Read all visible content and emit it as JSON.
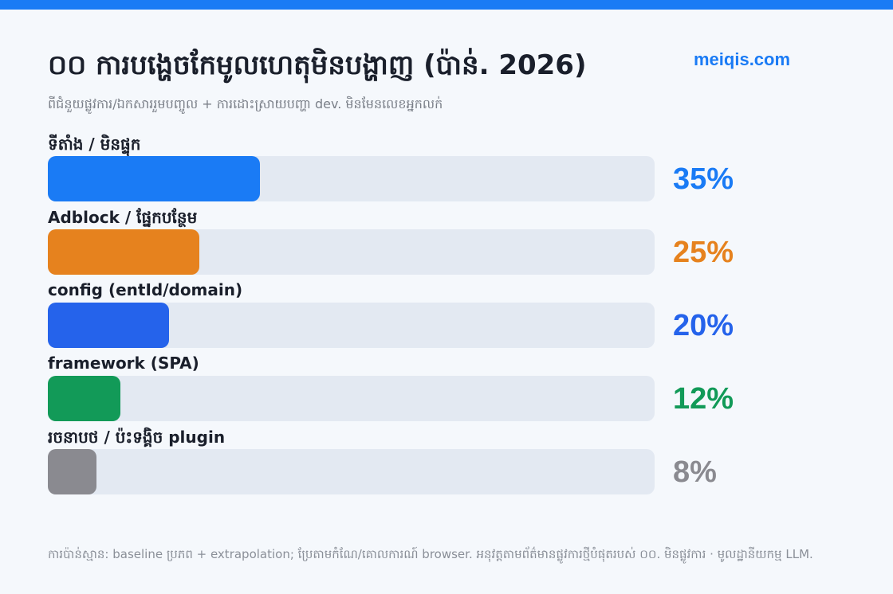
{
  "header": {
    "title": "០០ ការបង្ហេចកែមូលហេតុមិនបង្ហាញ (ប៉ាន់. 2026)",
    "brand": "meiqis.com",
    "subtitle": "ពីជំនួយផ្លូវការ/ឯកសាររួមបញ្ចូល + ការដោះស្រាយបញ្ហា dev. មិនមែនលេខអ្នកលក់"
  },
  "chart_data": {
    "type": "bar",
    "orientation": "horizontal",
    "categories": [
      "ទីតាំង / មិនផ្ទុក",
      "Adblock / ផ្នែកបន្ថែម",
      "config (entId/domain)",
      "framework (SPA)",
      "រចនាបថ / ប៉ះទង្គិច plugin"
    ],
    "values": [
      35,
      25,
      20,
      12,
      8
    ],
    "value_labels": [
      "35%",
      "25%",
      "20%",
      "12%",
      "8%"
    ],
    "colors": [
      "#1a7bf5",
      "#e6821e",
      "#2563eb",
      "#129a58",
      "#8a8a90"
    ],
    "xlim": [
      0,
      100
    ],
    "grid": false,
    "legend": "none"
  },
  "footer": {
    "note": "ការប៉ាន់ស្មាន: baseline ប្រភព + extrapolation; ប្រែតាមកំណែ/គោលការណ៍ browser. អនុវត្តតាមព័ត៌មានផ្លូវការថ្មីបំផុតរបស់ ០០. មិនផ្លូវការ · មូលដ្ឋានីយកម្ម LLM."
  }
}
